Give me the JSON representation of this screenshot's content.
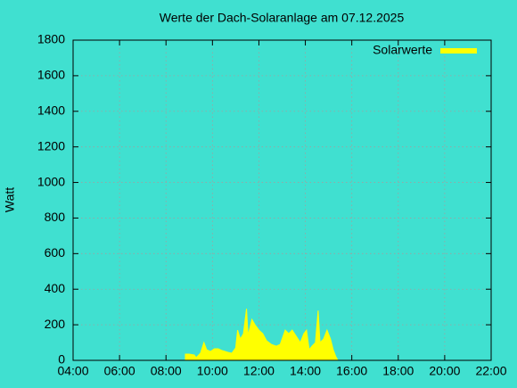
{
  "chart_data": {
    "type": "area",
    "title": "Werte der Dach-Solaranlage am 07.12.2025",
    "ylabel": "Watt",
    "x": [
      "08:50",
      "09:00",
      "09:13",
      "09:18",
      "09:29",
      "09:38",
      "09:45",
      "09:55",
      "10:05",
      "10:15",
      "10:25",
      "10:40",
      "10:50",
      "11:00",
      "11:05",
      "11:12",
      "11:20",
      "11:28",
      "11:32",
      "11:42",
      "11:50",
      "12:00",
      "12:10",
      "12:20",
      "12:32",
      "12:45",
      "12:55",
      "13:08",
      "13:17",
      "13:26",
      "13:38",
      "13:47",
      "13:56",
      "14:03",
      "14:10",
      "14:17",
      "14:26",
      "14:33",
      "14:38",
      "14:47",
      "14:56",
      "15:05",
      "15:12",
      "15:19",
      "15:24"
    ],
    "series": [
      {
        "name": "Solarwerte",
        "color": "#ffff00",
        "values": [
          35,
          35,
          30,
          15,
          40,
          100,
          60,
          50,
          65,
          65,
          55,
          45,
          40,
          70,
          170,
          120,
          150,
          290,
          140,
          230,
          200,
          170,
          150,
          110,
          90,
          80,
          90,
          170,
          150,
          170,
          130,
          100,
          150,
          170,
          60,
          80,
          100,
          280,
          100,
          120,
          170,
          120,
          60,
          20,
          0
        ]
      }
    ],
    "xlim": [
      "04:00",
      "22:00"
    ],
    "xticks": [
      "04:00",
      "06:00",
      "08:00",
      "10:00",
      "12:00",
      "14:00",
      "16:00",
      "18:00",
      "20:00",
      "22:00"
    ],
    "ylim": [
      0,
      1800
    ],
    "yticks": [
      0,
      200,
      400,
      600,
      800,
      1000,
      1200,
      1400,
      1600,
      1800
    ],
    "grid": true,
    "legend": "top right"
  }
}
